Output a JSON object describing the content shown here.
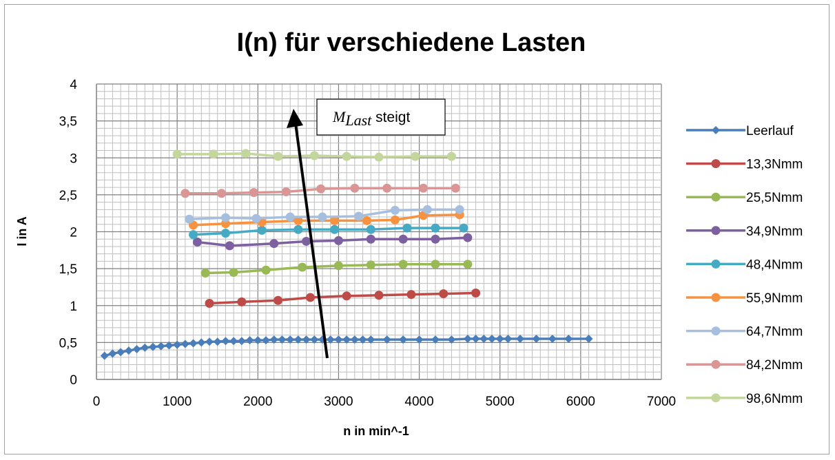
{
  "chart_data": {
    "type": "line",
    "title": "I(n) für verschiedene Lasten",
    "xlabel": "n in min^-1",
    "ylabel": "I in A",
    "xlim": [
      0,
      7000
    ],
    "ylim": [
      0,
      4
    ],
    "xticks": [
      "0",
      "1000",
      "2000",
      "3000",
      "4000",
      "5000",
      "6000",
      "7000"
    ],
    "yticks": [
      "0",
      "0,5",
      "1",
      "1,5",
      "2",
      "2,5",
      "3",
      "3,5",
      "4"
    ],
    "grid": true,
    "legend_position": "right",
    "annotation": {
      "math": "M",
      "sub": "Last",
      "text": " steigt"
    },
    "series": [
      {
        "name": "Leerlauf",
        "color": "#4a7ebb",
        "marker": "diamond",
        "x": [
          100,
          200,
          300,
          400,
          500,
          600,
          700,
          800,
          900,
          1000,
          1100,
          1200,
          1300,
          1400,
          1500,
          1600,
          1700,
          1800,
          1900,
          2000,
          2100,
          2200,
          2300,
          2400,
          2500,
          2600,
          2700,
          2800,
          2900,
          3000,
          3100,
          3200,
          3300,
          3400,
          3600,
          3800,
          4000,
          4200,
          4400,
          4600,
          4700,
          4800,
          4900,
          5000,
          5100,
          5250,
          5450,
          5650,
          5850,
          6100
        ],
        "y": [
          0.32,
          0.35,
          0.37,
          0.39,
          0.41,
          0.43,
          0.44,
          0.45,
          0.46,
          0.47,
          0.48,
          0.49,
          0.5,
          0.51,
          0.51,
          0.52,
          0.52,
          0.52,
          0.53,
          0.53,
          0.53,
          0.54,
          0.54,
          0.54,
          0.54,
          0.54,
          0.54,
          0.54,
          0.54,
          0.54,
          0.54,
          0.54,
          0.54,
          0.54,
          0.54,
          0.54,
          0.54,
          0.54,
          0.54,
          0.55,
          0.55,
          0.55,
          0.55,
          0.55,
          0.55,
          0.55,
          0.55,
          0.55,
          0.55,
          0.55
        ]
      },
      {
        "name": "13,3Nmm",
        "color": "#be4b48",
        "marker": "circle",
        "x": [
          1400,
          1800,
          2250,
          2650,
          3100,
          3500,
          3900,
          4300,
          4700
        ],
        "y": [
          1.03,
          1.05,
          1.07,
          1.11,
          1.13,
          1.14,
          1.15,
          1.16,
          1.17
        ]
      },
      {
        "name": "25,5Nmm",
        "color": "#98b954",
        "marker": "circle",
        "x": [
          1350,
          1700,
          2100,
          2550,
          3000,
          3400,
          3800,
          4200,
          4600
        ],
        "y": [
          1.44,
          1.45,
          1.48,
          1.52,
          1.54,
          1.55,
          1.56,
          1.56,
          1.56
        ]
      },
      {
        "name": "34,9Nmm",
        "color": "#7d60a0",
        "marker": "circle",
        "x": [
          1250,
          1650,
          2200,
          2600,
          3000,
          3400,
          3800,
          4200,
          4600
        ],
        "y": [
          1.86,
          1.81,
          1.84,
          1.87,
          1.88,
          1.9,
          1.9,
          1.9,
          1.92
        ]
      },
      {
        "name": "48,4Nmm",
        "color": "#46aac5",
        "marker": "circle",
        "x": [
          1200,
          1600,
          2050,
          2500,
          2950,
          3400,
          3850,
          4200,
          4550
        ],
        "y": [
          1.96,
          1.98,
          2.02,
          2.03,
          2.03,
          2.03,
          2.05,
          2.05,
          2.05
        ]
      },
      {
        "name": "55,9Nmm",
        "color": "#f69240",
        "marker": "circle",
        "x": [
          1200,
          1600,
          2050,
          2500,
          2950,
          3350,
          3700,
          4050,
          4500
        ],
        "y": [
          2.09,
          2.11,
          2.13,
          2.15,
          2.15,
          2.15,
          2.16,
          2.22,
          2.23
        ]
      },
      {
        "name": "64,7Nmm",
        "color": "#a7bfde",
        "marker": "circle",
        "x": [
          1150,
          1600,
          1980,
          2400,
          2800,
          3250,
          3700,
          4100,
          4500
        ],
        "y": [
          2.17,
          2.19,
          2.18,
          2.2,
          2.2,
          2.21,
          2.29,
          2.3,
          2.3
        ]
      },
      {
        "name": "84,2Nmm",
        "color": "#da9694",
        "marker": "circle",
        "x": [
          1100,
          1550,
          1950,
          2350,
          2780,
          3200,
          3600,
          4050,
          4450
        ],
        "y": [
          2.52,
          2.52,
          2.53,
          2.54,
          2.58,
          2.59,
          2.59,
          2.59,
          2.59
        ]
      },
      {
        "name": "98,6Nmm",
        "color": "#c3d69b",
        "marker": "circle",
        "x": [
          1000,
          1450,
          1850,
          2250,
          2700,
          3100,
          3500,
          3950,
          4400
        ],
        "y": [
          3.05,
          3.05,
          3.06,
          3.02,
          3.03,
          3.02,
          3.01,
          3.02,
          3.02
        ]
      }
    ]
  }
}
